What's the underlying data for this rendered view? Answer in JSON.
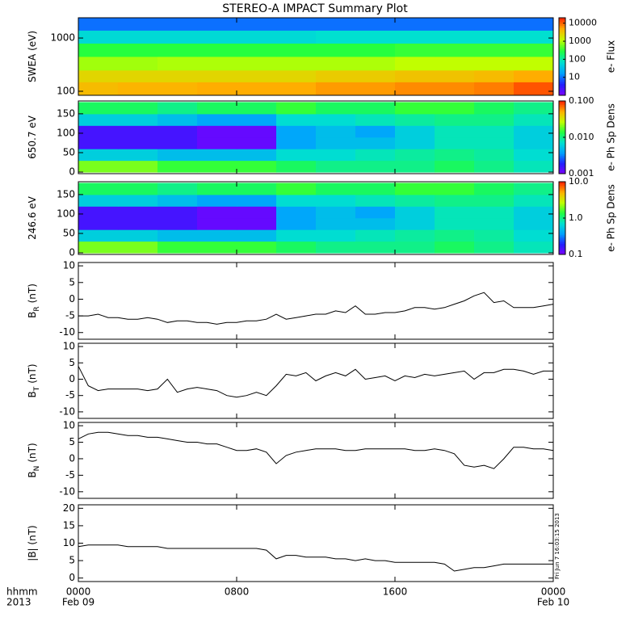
{
  "title": "STEREO-A IMPACT Summary Plot",
  "x_axis": {
    "labels": [
      "hhmm",
      "2013"
    ],
    "xlim": [
      0,
      24
    ],
    "xticks": [
      {
        "value": 0,
        "label": "0000"
      },
      {
        "value": 8,
        "label": "0800"
      },
      {
        "value": 16,
        "label": "1600"
      },
      {
        "value": 24,
        "label": "0000"
      }
    ],
    "dates": [
      {
        "value": 0,
        "label": "Feb 09"
      },
      {
        "value": 24,
        "label": "Feb 10"
      }
    ]
  },
  "footnote": "Fri Jun  7 16:03:15 2013",
  "chart_data": [
    {
      "type": "heatmap",
      "ylabel": "SWEA (eV)",
      "zlabel": "e- Flux",
      "log_y": true,
      "log_z": true,
      "ylim": [
        84,
        2400
      ],
      "yticks": [
        100,
        1000
      ],
      "zlim": [
        1,
        20000
      ],
      "zticks": [
        10,
        100,
        1000,
        10000
      ],
      "colormap": [
        "#8000ff",
        "#2020ff",
        "#00a0ff",
        "#00e0d0",
        "#20ff40",
        "#c0ff00",
        "#ffb000",
        "#ff2000"
      ],
      "x_bins": [
        0,
        2,
        4,
        6,
        8,
        10,
        12,
        14,
        16,
        18,
        20,
        22,
        24
      ],
      "y_bins": [
        84,
        150,
        250,
        450,
        800,
        1400,
        2400
      ],
      "z": [
        [
          4000,
          4500,
          4500,
          5000,
          5000,
          5000,
          6000,
          6000,
          7000,
          7000,
          8000,
          12000
        ],
        [
          2500,
          2500,
          2500,
          2500,
          2500,
          2500,
          3000,
          3000,
          3500,
          3500,
          4000,
          5000
        ],
        [
          900,
          900,
          1000,
          1000,
          1000,
          1000,
          1000,
          1000,
          1200,
          1200,
          1200,
          1200
        ],
        [
          300,
          300,
          300,
          300,
          300,
          300,
          300,
          300,
          350,
          350,
          350,
          350
        ],
        [
          60,
          60,
          60,
          60,
          60,
          60,
          70,
          70,
          70,
          70,
          70,
          70
        ],
        [
          10,
          10,
          10,
          10,
          10,
          10,
          10,
          10,
          10,
          10,
          10,
          10
        ]
      ]
    },
    {
      "type": "heatmap",
      "ylabel": "650.7 eV",
      "zlabel": "e- Ph Sp Dens",
      "log_y": false,
      "log_z": true,
      "ylim": [
        -4,
        183
      ],
      "yticks": [
        0,
        50,
        100,
        150
      ],
      "zlim": [
        0.001,
        0.1
      ],
      "zticks": [
        0.001,
        {
          "value": 0.01,
          "label": "0.010"
        },
        {
          "value": 0.1,
          "label": "0.100"
        }
      ],
      "colormap": [
        "#8000ff",
        "#2020ff",
        "#00a0ff",
        "#00e0d0",
        "#20ff40",
        "#c0ff00",
        "#ffb000",
        "#ff2000"
      ],
      "x_bins": [
        0,
        2,
        4,
        6,
        8,
        10,
        12,
        14,
        16,
        18,
        20,
        22,
        24
      ],
      "y_bins": [
        0,
        30,
        60,
        90,
        120,
        150,
        180
      ],
      "z": [
        [
          0.02,
          0.02,
          0.015,
          0.015,
          0.015,
          0.012,
          0.01,
          0.01,
          0.01,
          0.012,
          0.01,
          0.008
        ],
        [
          0.006,
          0.006,
          0.005,
          0.005,
          0.005,
          0.007,
          0.007,
          0.008,
          0.009,
          0.01,
          0.009,
          0.007
        ],
        [
          0.0015,
          0.0015,
          0.0015,
          0.0012,
          0.0012,
          0.004,
          0.005,
          0.005,
          0.006,
          0.008,
          0.008,
          0.006
        ],
        [
          0.0015,
          0.0015,
          0.0015,
          0.0012,
          0.0012,
          0.004,
          0.005,
          0.004,
          0.006,
          0.008,
          0.008,
          0.006
        ],
        [
          0.006,
          0.006,
          0.005,
          0.004,
          0.004,
          0.007,
          0.007,
          0.008,
          0.009,
          0.01,
          0.01,
          0.008
        ],
        [
          0.012,
          0.012,
          0.01,
          0.012,
          0.012,
          0.015,
          0.012,
          0.012,
          0.015,
          0.015,
          0.012,
          0.01
        ]
      ]
    },
    {
      "type": "heatmap",
      "ylabel": "246.6 eV",
      "zlabel": "e- Ph Sp Dens",
      "log_y": false,
      "log_z": true,
      "ylim": [
        -4,
        183
      ],
      "yticks": [
        0,
        50,
        100,
        150
      ],
      "zlim": [
        0.1,
        10
      ],
      "zticks": [
        0.1,
        {
          "value": 1,
          "label": "1.0"
        },
        {
          "value": 10,
          "label": "10.0"
        }
      ],
      "colormap": [
        "#8000ff",
        "#2020ff",
        "#00a0ff",
        "#00e0d0",
        "#20ff40",
        "#c0ff00",
        "#ffb000",
        "#ff2000"
      ],
      "x_bins": [
        0,
        2,
        4,
        6,
        8,
        10,
        12,
        14,
        16,
        18,
        20,
        22,
        24
      ],
      "y_bins": [
        0,
        30,
        60,
        90,
        120,
        150,
        180
      ],
      "z": [
        [
          2,
          2,
          1.5,
          1.5,
          1.5,
          1.2,
          1,
          1,
          1,
          1.2,
          1,
          0.8
        ],
        [
          0.6,
          0.6,
          0.5,
          0.5,
          0.5,
          0.7,
          0.7,
          0.8,
          0.9,
          1,
          0.9,
          0.7
        ],
        [
          0.15,
          0.15,
          0.15,
          0.12,
          0.12,
          0.4,
          0.5,
          0.5,
          0.6,
          0.8,
          0.8,
          0.6
        ],
        [
          0.15,
          0.15,
          0.15,
          0.12,
          0.12,
          0.4,
          0.5,
          0.4,
          0.6,
          0.8,
          0.8,
          0.6
        ],
        [
          0.6,
          0.6,
          0.5,
          0.4,
          0.4,
          0.7,
          0.7,
          0.8,
          0.9,
          1,
          1,
          0.8
        ],
        [
          1.2,
          1.2,
          1,
          1.2,
          1.2,
          1.5,
          1.2,
          1.2,
          1.5,
          1.5,
          1.2,
          1
        ]
      ]
    },
    {
      "type": "line",
      "ylabel": "B",
      "ylabel_sub": "R",
      "ylabel_unit": "(nT)",
      "ylim": [
        -12,
        11
      ],
      "yticks": [
        -10,
        -5,
        0,
        5,
        10
      ],
      "color": "#000000",
      "x": [
        0,
        0.5,
        1,
        1.5,
        2,
        2.5,
        3,
        3.5,
        4,
        4.5,
        5,
        5.5,
        6,
        6.5,
        7,
        7.5,
        8,
        8.5,
        9,
        9.5,
        10,
        10.5,
        11,
        11.5,
        12,
        12.5,
        13,
        13.5,
        14,
        14.5,
        15,
        15.5,
        16,
        16.5,
        17,
        17.5,
        18,
        18.5,
        19,
        19.5,
        20,
        20.5,
        21,
        21.5,
        22,
        22.5,
        23,
        23.5,
        24
      ],
      "values": [
        -5,
        -5,
        -4.5,
        -5.5,
        -5.5,
        -6,
        -6,
        -5.5,
        -6,
        -7,
        -6.5,
        -6.5,
        -7,
        -7,
        -7.5,
        -7,
        -7,
        -6.5,
        -6.5,
        -6,
        -4.5,
        -6,
        -5.5,
        -5,
        -4.5,
        -4.5,
        -3.5,
        -4,
        -2,
        -4.5,
        -4.5,
        -4,
        -4,
        -3.5,
        -2.5,
        -2.5,
        -3,
        -2.5,
        -1.5,
        -0.5,
        1,
        2,
        -1,
        -0.5,
        -2.5,
        -2.5,
        -2.5,
        -2,
        -1.5
      ]
    },
    {
      "type": "line",
      "ylabel": "B",
      "ylabel_sub": "T",
      "ylabel_unit": "(nT)",
      "ylim": [
        -12,
        11
      ],
      "yticks": [
        -10,
        -5,
        0,
        5,
        10
      ],
      "color": "#000000",
      "x": [
        0,
        0.5,
        1,
        1.5,
        2,
        2.5,
        3,
        3.5,
        4,
        4.5,
        5,
        5.5,
        6,
        6.5,
        7,
        7.5,
        8,
        8.5,
        9,
        9.5,
        10,
        10.5,
        11,
        11.5,
        12,
        12.5,
        13,
        13.5,
        14,
        14.5,
        15,
        15.5,
        16,
        16.5,
        17,
        17.5,
        18,
        18.5,
        19,
        19.5,
        20,
        20.5,
        21,
        21.5,
        22,
        22.5,
        23,
        23.5,
        24
      ],
      "values": [
        4,
        -2,
        -3.5,
        -3,
        -3,
        -3,
        -3,
        -3.5,
        -3,
        0,
        -4,
        -3,
        -2.5,
        -3,
        -3.5,
        -5,
        -5.5,
        -5,
        -4,
        -5,
        -2,
        1.5,
        1,
        2,
        -0.5,
        1,
        2,
        1,
        3,
        0,
        0.5,
        1,
        -0.5,
        1,
        0.5,
        1.5,
        1,
        1.5,
        2,
        2.5,
        0,
        2,
        2,
        3,
        3,
        2.5,
        1.5,
        2.5,
        2.5
      ]
    },
    {
      "type": "line",
      "ylabel": "B",
      "ylabel_sub": "N",
      "ylabel_unit": "(nT)",
      "ylim": [
        -12,
        11
      ],
      "yticks": [
        -10,
        -5,
        0,
        5,
        10
      ],
      "color": "#000000",
      "x": [
        0,
        0.5,
        1,
        1.5,
        2,
        2.5,
        3,
        3.5,
        4,
        4.5,
        5,
        5.5,
        6,
        6.5,
        7,
        7.5,
        8,
        8.5,
        9,
        9.5,
        10,
        10.5,
        11,
        11.5,
        12,
        12.5,
        13,
        13.5,
        14,
        14.5,
        15,
        15.5,
        16,
        16.5,
        17,
        17.5,
        18,
        18.5,
        19,
        19.5,
        20,
        20.5,
        21,
        21.5,
        22,
        22.5,
        23,
        23.5,
        24
      ],
      "values": [
        6,
        7.5,
        8,
        8,
        7.5,
        7,
        7,
        6.5,
        6.5,
        6,
        5.5,
        5,
        5,
        4.5,
        4.5,
        3.5,
        2.5,
        2.5,
        3,
        2,
        -1.5,
        1,
        2,
        2.5,
        3,
        3,
        3,
        2.5,
        2.5,
        3,
        3,
        3,
        3,
        3,
        2.5,
        2.5,
        3,
        2.5,
        1.5,
        -2,
        -2.5,
        -2,
        -3,
        0,
        3.5,
        3.5,
        3,
        3,
        2.5
      ]
    },
    {
      "type": "line",
      "ylabel": "|B| (nT)",
      "ylim": [
        -1,
        21
      ],
      "yticks": [
        0,
        5,
        10,
        15,
        20
      ],
      "color": "#000000",
      "x": [
        0,
        0.5,
        1,
        1.5,
        2,
        2.5,
        3,
        3.5,
        4,
        4.5,
        5,
        5.5,
        6,
        6.5,
        7,
        7.5,
        8,
        8.5,
        9,
        9.5,
        10,
        10.5,
        11,
        11.5,
        12,
        12.5,
        13,
        13.5,
        14,
        14.5,
        15,
        15.5,
        16,
        16.5,
        17,
        17.5,
        18,
        18.5,
        19,
        19.5,
        20,
        20.5,
        21,
        21.5,
        22,
        22.5,
        23,
        23.5,
        24
      ],
      "values": [
        9,
        9.5,
        9.5,
        9.5,
        9.5,
        9,
        9,
        9,
        9,
        8.5,
        8.5,
        8.5,
        8.5,
        8.5,
        8.5,
        8.5,
        8.5,
        8.5,
        8.5,
        8,
        5.5,
        6.5,
        6.5,
        6,
        6,
        6,
        5.5,
        5.5,
        5,
        5.5,
        5,
        5,
        4.5,
        4.5,
        4.5,
        4.5,
        4.5,
        4,
        2,
        2.5,
        3,
        3,
        3.5,
        4,
        4,
        4,
        4,
        4,
        4
      ]
    }
  ]
}
